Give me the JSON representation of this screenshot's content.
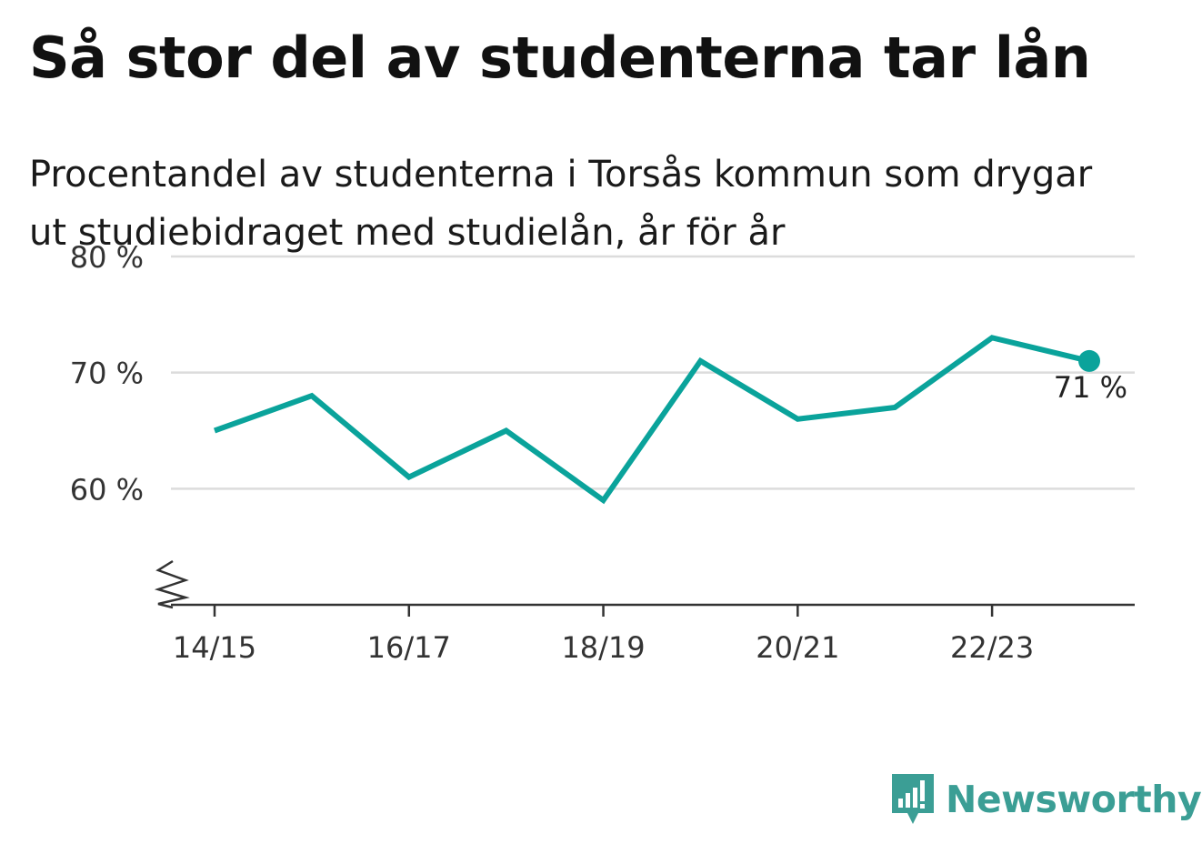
{
  "title": "Så stor del av studenterna tar lån",
  "subtitle": "Procentandel av studenterna i Torsås kommun som drygar ut studiebidraget med studielån, år för år",
  "brand": {
    "name": "Newsworthy",
    "color": "#3b9e95",
    "icon": "bar-chart-speech-bubble-icon"
  },
  "chart_data": {
    "type": "line",
    "x": [
      "14/15",
      "15/16",
      "16/17",
      "17/18",
      "18/19",
      "19/20",
      "20/21",
      "21/22",
      "22/23",
      "23/24"
    ],
    "series": [
      {
        "values": [
          65,
          68,
          61,
          65,
          59,
          71,
          66,
          67,
          73,
          71
        ],
        "color": "#0aa39b"
      }
    ],
    "ylim": [
      50,
      80
    ],
    "yticks": [
      60,
      70,
      80
    ],
    "ytick_labels": [
      "60 %",
      "70 %",
      "80 %"
    ],
    "xticks": [
      "14/15",
      "16/17",
      "18/19",
      "20/21",
      "22/23"
    ],
    "grid": true,
    "axis_break": true,
    "end_label": "71 %"
  }
}
